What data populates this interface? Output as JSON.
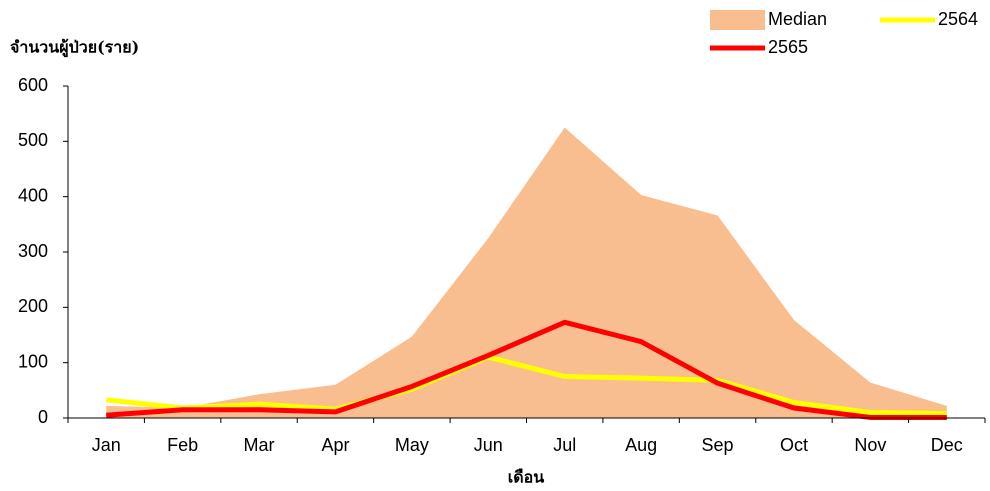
{
  "chart_data": {
    "type": "line",
    "y_label": "จำนวนผู้ป่วย(ราย)",
    "x_label": "เดือน",
    "categories": [
      "Jan",
      "Feb",
      "Mar",
      "Apr",
      "May",
      "Jun",
      "Jul",
      "Aug",
      "Sep",
      "Oct",
      "Nov",
      "Dec"
    ],
    "series": [
      {
        "name": "Median",
        "type": "area",
        "color": "#f9be8f",
        "values": [
          22,
          18,
          43,
          60,
          147,
          325,
          525,
          403,
          366,
          177,
          64,
          22
        ]
      },
      {
        "name": "2564",
        "type": "line",
        "color": "#ffff00",
        "values": [
          33,
          18,
          25,
          16,
          52,
          110,
          75,
          72,
          68,
          28,
          10,
          8
        ]
      },
      {
        "name": "2565",
        "type": "line",
        "color": "#ff0000",
        "values": [
          5,
          15,
          15,
          11,
          57,
          113,
          173,
          138,
          63,
          18,
          1,
          1
        ]
      }
    ],
    "ylim": [
      0,
      600
    ],
    "yticks": [
      0,
      100,
      200,
      300,
      400,
      500,
      600
    ],
    "grid": false
  }
}
